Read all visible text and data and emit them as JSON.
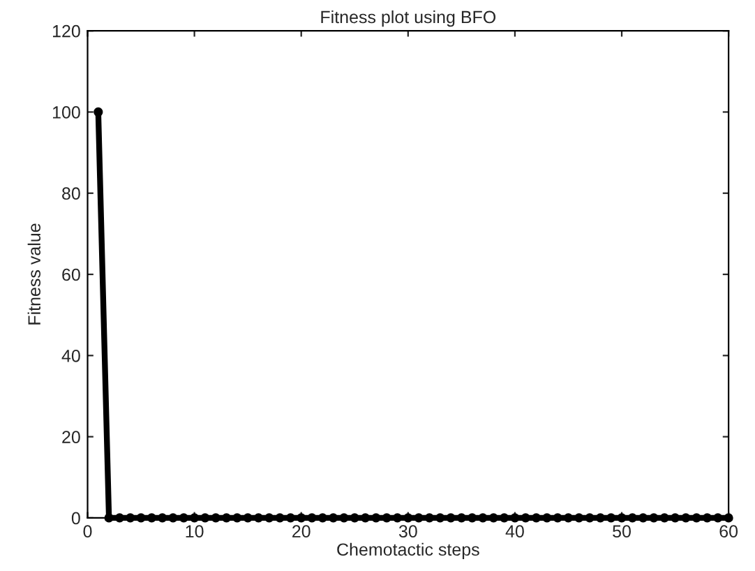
{
  "chart_data": {
    "type": "line",
    "title": "Fitness plot using BFO",
    "xlabel": "Chemotactic steps",
    "ylabel": "Fitness value",
    "x": [
      1,
      2,
      3,
      4,
      5,
      6,
      7,
      8,
      9,
      10,
      11,
      12,
      13,
      14,
      15,
      16,
      17,
      18,
      19,
      20,
      21,
      22,
      23,
      24,
      25,
      26,
      27,
      28,
      29,
      30,
      31,
      32,
      33,
      34,
      35,
      36,
      37,
      38,
      39,
      40,
      41,
      42,
      43,
      44,
      45,
      46,
      47,
      48,
      49,
      50,
      51,
      52,
      53,
      54,
      55,
      56,
      57,
      58,
      59,
      60
    ],
    "series": [
      {
        "color": "#000000",
        "values": [
          100,
          0,
          0,
          0,
          0,
          0,
          0,
          0,
          0,
          0,
          0,
          0,
          0,
          0,
          0,
          0,
          0,
          0,
          0,
          0,
          0,
          0,
          0,
          0,
          0,
          0,
          0,
          0,
          0,
          0,
          0,
          0,
          0,
          0,
          0,
          0,
          0,
          0,
          0,
          0,
          0,
          0,
          0,
          0,
          0,
          0,
          0,
          0,
          0,
          0,
          0,
          0,
          0,
          0,
          0,
          0,
          0,
          0,
          0,
          0
        ]
      }
    ],
    "xlim": [
      0,
      60
    ],
    "xticks": [
      0,
      10,
      20,
      30,
      40,
      50,
      60
    ],
    "ylim": [
      0,
      120
    ],
    "yticks": [
      0,
      20,
      40,
      60,
      80,
      100,
      120
    ],
    "grid": false,
    "legend": false,
    "marker": "circle",
    "line_style": "solid"
  }
}
